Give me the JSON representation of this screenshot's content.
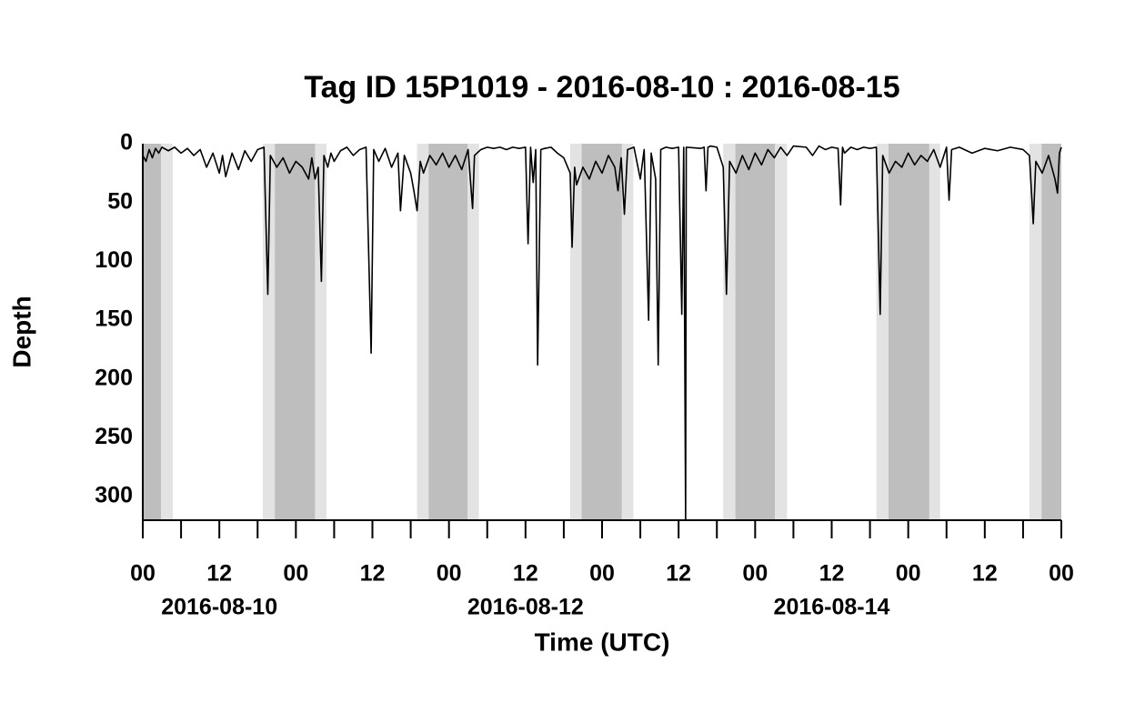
{
  "chart_data": {
    "type": "line",
    "title": "Tag ID 15P1019 - 2016-08-10 : 2016-08-15",
    "x_label": "Time (UTC)",
    "y_label": "Depth",
    "xlim": [
      0,
      144
    ],
    "ylim": [
      0,
      320
    ],
    "y_reversed": true,
    "yticks": [
      0,
      50,
      100,
      150,
      200,
      250,
      300
    ],
    "xticks": [
      {
        "value": 0,
        "label": "00"
      },
      {
        "value": 12,
        "label": "12"
      },
      {
        "value": 24,
        "label": "00"
      },
      {
        "value": 36,
        "label": "12"
      },
      {
        "value": 48,
        "label": "00"
      },
      {
        "value": 60,
        "label": "12"
      },
      {
        "value": 72,
        "label": "00"
      },
      {
        "value": 84,
        "label": "12"
      },
      {
        "value": 96,
        "label": "00"
      },
      {
        "value": 108,
        "label": "12"
      },
      {
        "value": 120,
        "label": "00"
      },
      {
        "value": 132,
        "label": "12"
      },
      {
        "value": 144,
        "label": "00"
      }
    ],
    "xminor_ticks": [
      6,
      18,
      30,
      42,
      54,
      66,
      78,
      90,
      102,
      114,
      126,
      138
    ],
    "date_labels": [
      {
        "value": 12,
        "label": "2016-08-10"
      },
      {
        "value": 60,
        "label": "2016-08-12"
      },
      {
        "value": 108,
        "label": "2016-08-14"
      }
    ],
    "night": [
      [
        0,
        2.85
      ],
      [
        20.7,
        27.0
      ],
      [
        44.8,
        50.9
      ],
      [
        68.8,
        75.1
      ],
      [
        92.9,
        99.1
      ],
      [
        116.9,
        123.3
      ],
      [
        140.9,
        144
      ]
    ],
    "twilight": [
      [
        2.85,
        4.7
      ],
      [
        18.8,
        20.7
      ],
      [
        27.0,
        28.8
      ],
      [
        43.0,
        44.8
      ],
      [
        50.9,
        52.7
      ],
      [
        67.0,
        68.8
      ],
      [
        75.1,
        76.9
      ],
      [
        91.0,
        92.9
      ],
      [
        99.1,
        101.0
      ],
      [
        115.0,
        116.9
      ],
      [
        123.3,
        125.0
      ],
      [
        139.0,
        140.9
      ]
    ],
    "night_color": "#bebebe",
    "twilight_color": "#e3e3e3",
    "series": [
      {
        "color": "#000000",
        "x": [
          0,
          0.5,
          1,
          1.5,
          2,
          2.5,
          3,
          4,
          5,
          6,
          7,
          8,
          9,
          10,
          11,
          12,
          12.5,
          13,
          14,
          15,
          16,
          17,
          18,
          19,
          19.6,
          20,
          21,
          22,
          23,
          24,
          25,
          26,
          26.5,
          27,
          27.5,
          28,
          28.4,
          29,
          29.5,
          30,
          31,
          32,
          33,
          34,
          35,
          35.8,
          36.2,
          37,
          38,
          39,
          40,
          40.4,
          41,
          42,
          42.5,
          43,
          43.5,
          44,
          45,
          46,
          47,
          48,
          49,
          50,
          51,
          51.7,
          52,
          53,
          54,
          55,
          56,
          57,
          58,
          59,
          60,
          60.4,
          60.8,
          61.2,
          61.6,
          61.9,
          62.4,
          63,
          64,
          65,
          66,
          67,
          67.3,
          67.7,
          68,
          69,
          70,
          71,
          72,
          73,
          74,
          74.5,
          75,
          75.5,
          76,
          77,
          78,
          78.6,
          79.3,
          79.7,
          80.4,
          80.8,
          81.2,
          82,
          83,
          84,
          84.5,
          84.8,
          85.1,
          85.2,
          87.5,
          88,
          88.3,
          88.6,
          89,
          90,
          91,
          91.5,
          92,
          93,
          94,
          95,
          96,
          97,
          98,
          99,
          100,
          101,
          102,
          104,
          105,
          106,
          107,
          108,
          109,
          109.4,
          109.7,
          110,
          111,
          112,
          113,
          114,
          115,
          115.6,
          116,
          117,
          118,
          119,
          120,
          121,
          122,
          123,
          124,
          125,
          126,
          126.4,
          126.8,
          128,
          130,
          132,
          134,
          136,
          138,
          139,
          139.6,
          140,
          141,
          142,
          143,
          143.4,
          143.7,
          144
        ],
        "values": [
          10,
          15,
          5,
          12,
          4,
          8,
          3,
          6,
          3,
          8,
          4,
          10,
          5,
          20,
          8,
          25,
          10,
          28,
          8,
          22,
          6,
          15,
          5,
          3,
          128,
          10,
          20,
          12,
          25,
          15,
          20,
          30,
          12,
          30,
          20,
          117,
          10,
          20,
          8,
          15,
          6,
          3,
          10,
          5,
          3,
          178,
          5,
          15,
          4,
          20,
          8,
          57,
          10,
          25,
          40,
          57,
          15,
          25,
          10,
          18,
          8,
          20,
          10,
          22,
          5,
          55,
          10,
          5,
          3,
          4,
          3,
          5,
          3,
          4,
          3,
          85,
          3,
          33,
          5,
          188,
          5,
          4,
          3,
          8,
          12,
          25,
          88,
          20,
          35,
          20,
          30,
          15,
          25,
          10,
          20,
          40,
          12,
          60,
          5,
          3,
          30,
          5,
          150,
          8,
          30,
          188,
          5,
          3,
          4,
          3,
          145,
          3,
          320,
          3,
          4,
          3,
          40,
          3,
          2,
          3,
          20,
          128,
          15,
          25,
          10,
          22,
          8,
          18,
          5,
          12,
          3,
          10,
          2,
          3,
          10,
          2,
          5,
          3,
          4,
          52,
          3,
          8,
          3,
          5,
          3,
          4,
          3,
          145,
          10,
          25,
          15,
          20,
          8,
          18,
          10,
          15,
          5,
          20,
          3,
          48,
          5,
          3,
          8,
          4,
          6,
          3,
          5,
          10,
          68,
          15,
          25,
          10,
          30,
          42,
          8,
          3
        ]
      }
    ]
  }
}
